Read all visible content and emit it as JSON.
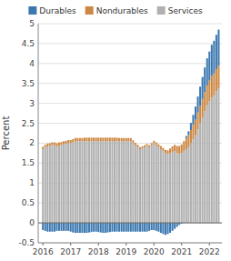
{
  "chart_data": {
    "type": "bar",
    "stacked": true,
    "grid": true,
    "ylabel": "Percent",
    "xlim": [
      2015.83,
      2022.45
    ],
    "xticks": [
      2016,
      2017,
      2018,
      2019,
      2020,
      2021,
      2022
    ],
    "ylim": [
      -0.5,
      5.0
    ],
    "yticks": [
      -0.5,
      0.0,
      0.5,
      1.0,
      1.5,
      2.0,
      2.5,
      3.0,
      3.5,
      4.0,
      4.5,
      5.0
    ],
    "x": [
      2016,
      2016.0833333333333,
      2016.1666666666667,
      2016.25,
      2016.3333333333333,
      2016.4166666666667,
      2016.5,
      2016.5833333333333,
      2016.6666666666667,
      2016.75,
      2016.8333333333333,
      2016.9166666666667,
      2017,
      2017.0833333333333,
      2017.1666666666667,
      2017.25,
      2017.3333333333333,
      2017.4166666666667,
      2017.5,
      2017.5833333333333,
      2017.6666666666667,
      2017.75,
      2017.8333333333333,
      2017.9166666666667,
      2018,
      2018.0833333333333,
      2018.1666666666667,
      2018.25,
      2018.3333333333333,
      2018.4166666666667,
      2018.5,
      2018.5833333333333,
      2018.6666666666667,
      2018.75,
      2018.8333333333333,
      2018.9166666666667,
      2019,
      2019.0833333333333,
      2019.1666666666667,
      2019.25,
      2019.3333333333333,
      2019.4166666666667,
      2019.5,
      2019.5833333333333,
      2019.6666666666667,
      2019.75,
      2019.8333333333333,
      2019.9166666666667,
      2020,
      2020.0833333333333,
      2020.1666666666667,
      2020.25,
      2020.3333333333333,
      2020.4166666666667,
      2020.5,
      2020.5833333333333,
      2020.6666666666667,
      2020.75,
      2020.8333333333333,
      2020.9166666666667,
      2021,
      2021.0833333333333,
      2021.1666666666667,
      2021.25,
      2021.3333333333333,
      2021.4166666666667,
      2021.5,
      2021.5833333333333,
      2021.6666666666667,
      2021.75,
      2021.8333333333333,
      2021.9166666666667,
      2022,
      2022.0833333333333,
      2022.1666666666667,
      2022.25,
      2022.3333333333333
    ],
    "series": [
      {
        "name": "Durables",
        "color": "#3b78b0",
        "values": [
          -0.18,
          -0.2,
          -0.22,
          -0.22,
          -0.22,
          -0.22,
          -0.2,
          -0.2,
          -0.2,
          -0.2,
          -0.2,
          -0.2,
          -0.22,
          -0.24,
          -0.25,
          -0.25,
          -0.25,
          -0.25,
          -0.25,
          -0.25,
          -0.24,
          -0.23,
          -0.22,
          -0.22,
          -0.23,
          -0.24,
          -0.25,
          -0.25,
          -0.24,
          -0.23,
          -0.22,
          -0.22,
          -0.22,
          -0.22,
          -0.22,
          -0.22,
          -0.22,
          -0.22,
          -0.22,
          -0.22,
          -0.22,
          -0.22,
          -0.22,
          -0.22,
          -0.22,
          -0.22,
          -0.2,
          -0.18,
          -0.18,
          -0.2,
          -0.22,
          -0.25,
          -0.28,
          -0.3,
          -0.28,
          -0.25,
          -0.2,
          -0.15,
          -0.1,
          -0.05,
          -0.02,
          0.0,
          0.05,
          0.1,
          0.18,
          0.25,
          0.33,
          0.4,
          0.48,
          0.55,
          0.62,
          0.68,
          0.73,
          0.78,
          0.82,
          0.86,
          0.9
        ]
      },
      {
        "name": "Nondurables",
        "color": "#cc8844",
        "values": [
          0.06,
          0.06,
          0.07,
          0.07,
          0.07,
          0.07,
          0.08,
          0.08,
          0.08,
          0.08,
          0.08,
          0.08,
          0.08,
          0.08,
          0.08,
          0.08,
          0.08,
          0.08,
          0.09,
          0.09,
          0.09,
          0.09,
          0.09,
          0.09,
          0.09,
          0.09,
          0.09,
          0.09,
          0.09,
          0.09,
          0.09,
          0.09,
          0.09,
          0.08,
          0.08,
          0.08,
          0.08,
          0.08,
          0.08,
          0.07,
          0.06,
          0.06,
          0.05,
          0.05,
          0.05,
          0.05,
          0.05,
          0.05,
          0.06,
          0.07,
          0.07,
          0.08,
          0.08,
          0.08,
          0.1,
          0.12,
          0.14,
          0.16,
          0.18,
          0.2,
          0.22,
          0.25,
          0.28,
          0.3,
          0.33,
          0.36,
          0.39,
          0.42,
          0.44,
          0.46,
          0.48,
          0.5,
          0.52,
          0.54,
          0.55,
          0.56,
          0.57
        ]
      },
      {
        "name": "Services",
        "color": "#b0b0b0",
        "values": [
          1.85,
          1.9,
          1.92,
          1.93,
          1.95,
          1.95,
          1.92,
          1.94,
          1.95,
          1.97,
          1.98,
          2.0,
          2.0,
          2.02,
          2.05,
          2.05,
          2.05,
          2.05,
          2.05,
          2.05,
          2.05,
          2.05,
          2.05,
          2.05,
          2.05,
          2.05,
          2.05,
          2.05,
          2.05,
          2.05,
          2.05,
          2.05,
          2.05,
          2.05,
          2.05,
          2.05,
          2.05,
          2.05,
          2.05,
          2.0,
          1.95,
          1.9,
          1.85,
          1.87,
          1.9,
          1.93,
          1.9,
          1.95,
          2.0,
          1.95,
          1.9,
          1.85,
          1.8,
          1.75,
          1.72,
          1.75,
          1.78,
          1.8,
          1.75,
          1.73,
          1.75,
          1.8,
          1.85,
          1.9,
          2.0,
          2.1,
          2.2,
          2.35,
          2.5,
          2.65,
          2.8,
          2.95,
          3.05,
          3.15,
          3.2,
          3.3,
          3.38
        ]
      }
    ]
  }
}
